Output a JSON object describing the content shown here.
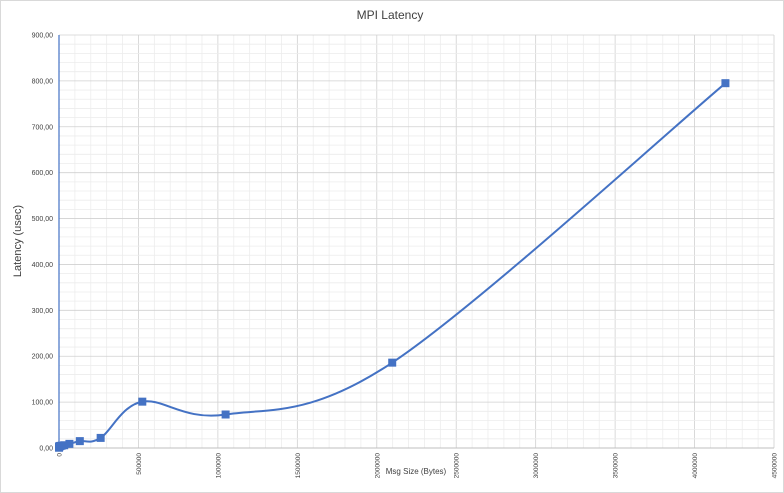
{
  "chart_data": {
    "type": "scatter",
    "title": "MPI Latency",
    "xlabel": "Msg Size (Bytes)",
    "ylabel": "Latency (usec)",
    "xlim": [
      0,
      4500000
    ],
    "ylim": [
      0,
      900
    ],
    "x_ticks": [
      "0",
      "500000",
      "1000000",
      "1500000",
      "2000000",
      "2500000",
      "3000000",
      "3500000",
      "4000000",
      "4500000"
    ],
    "y_ticks": [
      "0,00",
      "100,00",
      "200,00",
      "300,00",
      "400,00",
      "500,00",
      "600,00",
      "700,00",
      "800,00",
      "900,00"
    ],
    "grid": true,
    "smooth_line": true,
    "series": [
      {
        "color": "#4472c4",
        "marker": "square",
        "x": [
          1,
          2,
          4,
          8,
          16,
          32,
          64,
          128,
          256,
          512,
          1024,
          2048,
          4096,
          8192,
          16384,
          32768,
          65536,
          131072,
          262144,
          524288,
          1048576,
          2097152,
          4194304
        ],
        "y": [
          1,
          1,
          1,
          1,
          1,
          1,
          1,
          1.5,
          2,
          2.5,
          3,
          3.5,
          4,
          4.5,
          5,
          6,
          9,
          15,
          22,
          101,
          73,
          186,
          795
        ]
      }
    ]
  }
}
